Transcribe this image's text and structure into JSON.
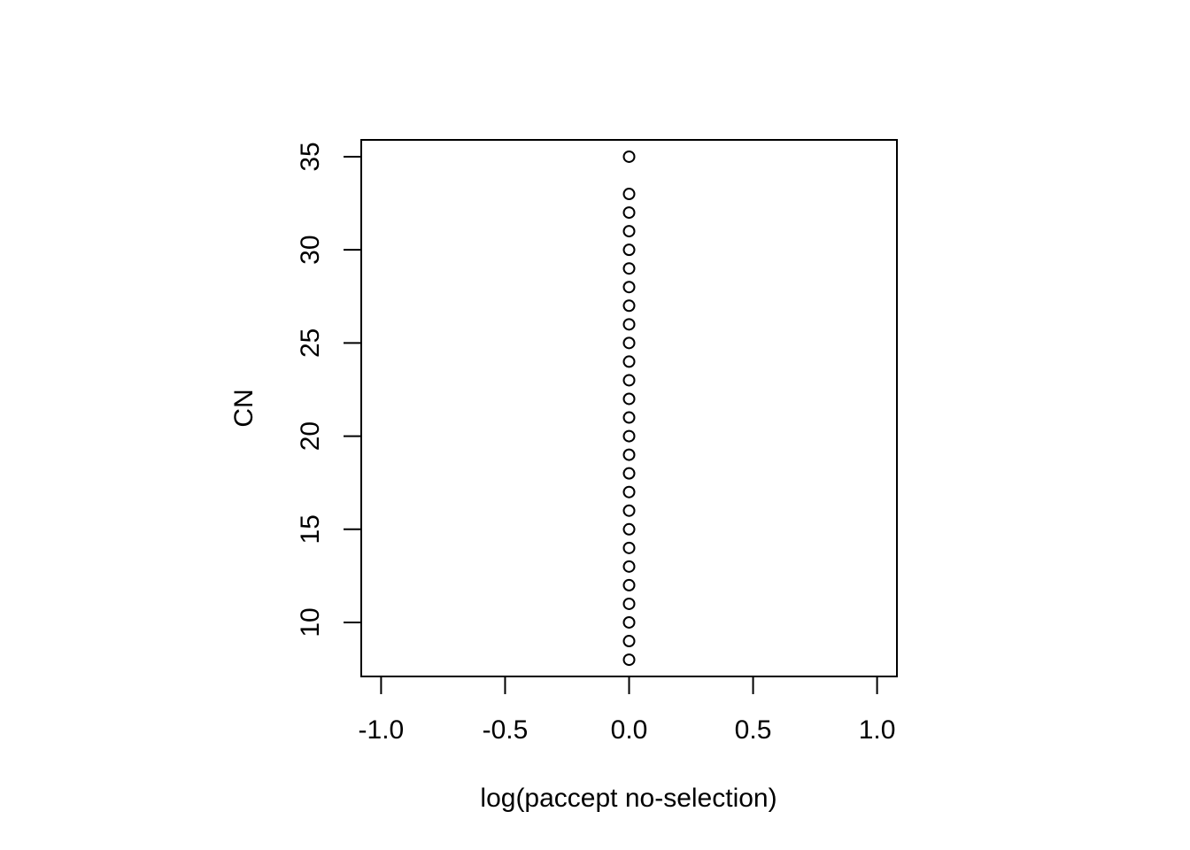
{
  "chart_data": {
    "type": "scatter",
    "title": "",
    "xlabel": "log(paccept no-selection)",
    "ylabel": "CN",
    "xlim": [
      -1.08,
      1.08
    ],
    "ylim": [
      7.1,
      35.9
    ],
    "x_ticks": [
      -1.0,
      -0.5,
      0.0,
      0.5,
      1.0
    ],
    "x_tick_labels": [
      "-1.0",
      "-0.5",
      "0.0",
      "0.5",
      "1.0"
    ],
    "y_ticks": [
      10,
      15,
      20,
      25,
      30,
      35
    ],
    "y_tick_labels": [
      "10",
      "15",
      "20",
      "25",
      "30",
      "35"
    ],
    "grid": false,
    "marker": "open-circle",
    "colors": {
      "points": "#000000",
      "axes": "#000000",
      "background": "#ffffff"
    },
    "series": [
      {
        "x": [
          0,
          0,
          0,
          0,
          0,
          0,
          0,
          0,
          0,
          0,
          0,
          0,
          0,
          0,
          0,
          0,
          0,
          0,
          0,
          0,
          0,
          0,
          0,
          0,
          0,
          0,
          0
        ],
        "y": [
          8,
          9,
          10,
          11,
          12,
          13,
          14,
          15,
          16,
          17,
          18,
          19,
          20,
          21,
          22,
          23,
          24,
          25,
          26,
          27,
          28,
          29,
          30,
          31,
          32,
          33,
          35
        ]
      }
    ]
  }
}
